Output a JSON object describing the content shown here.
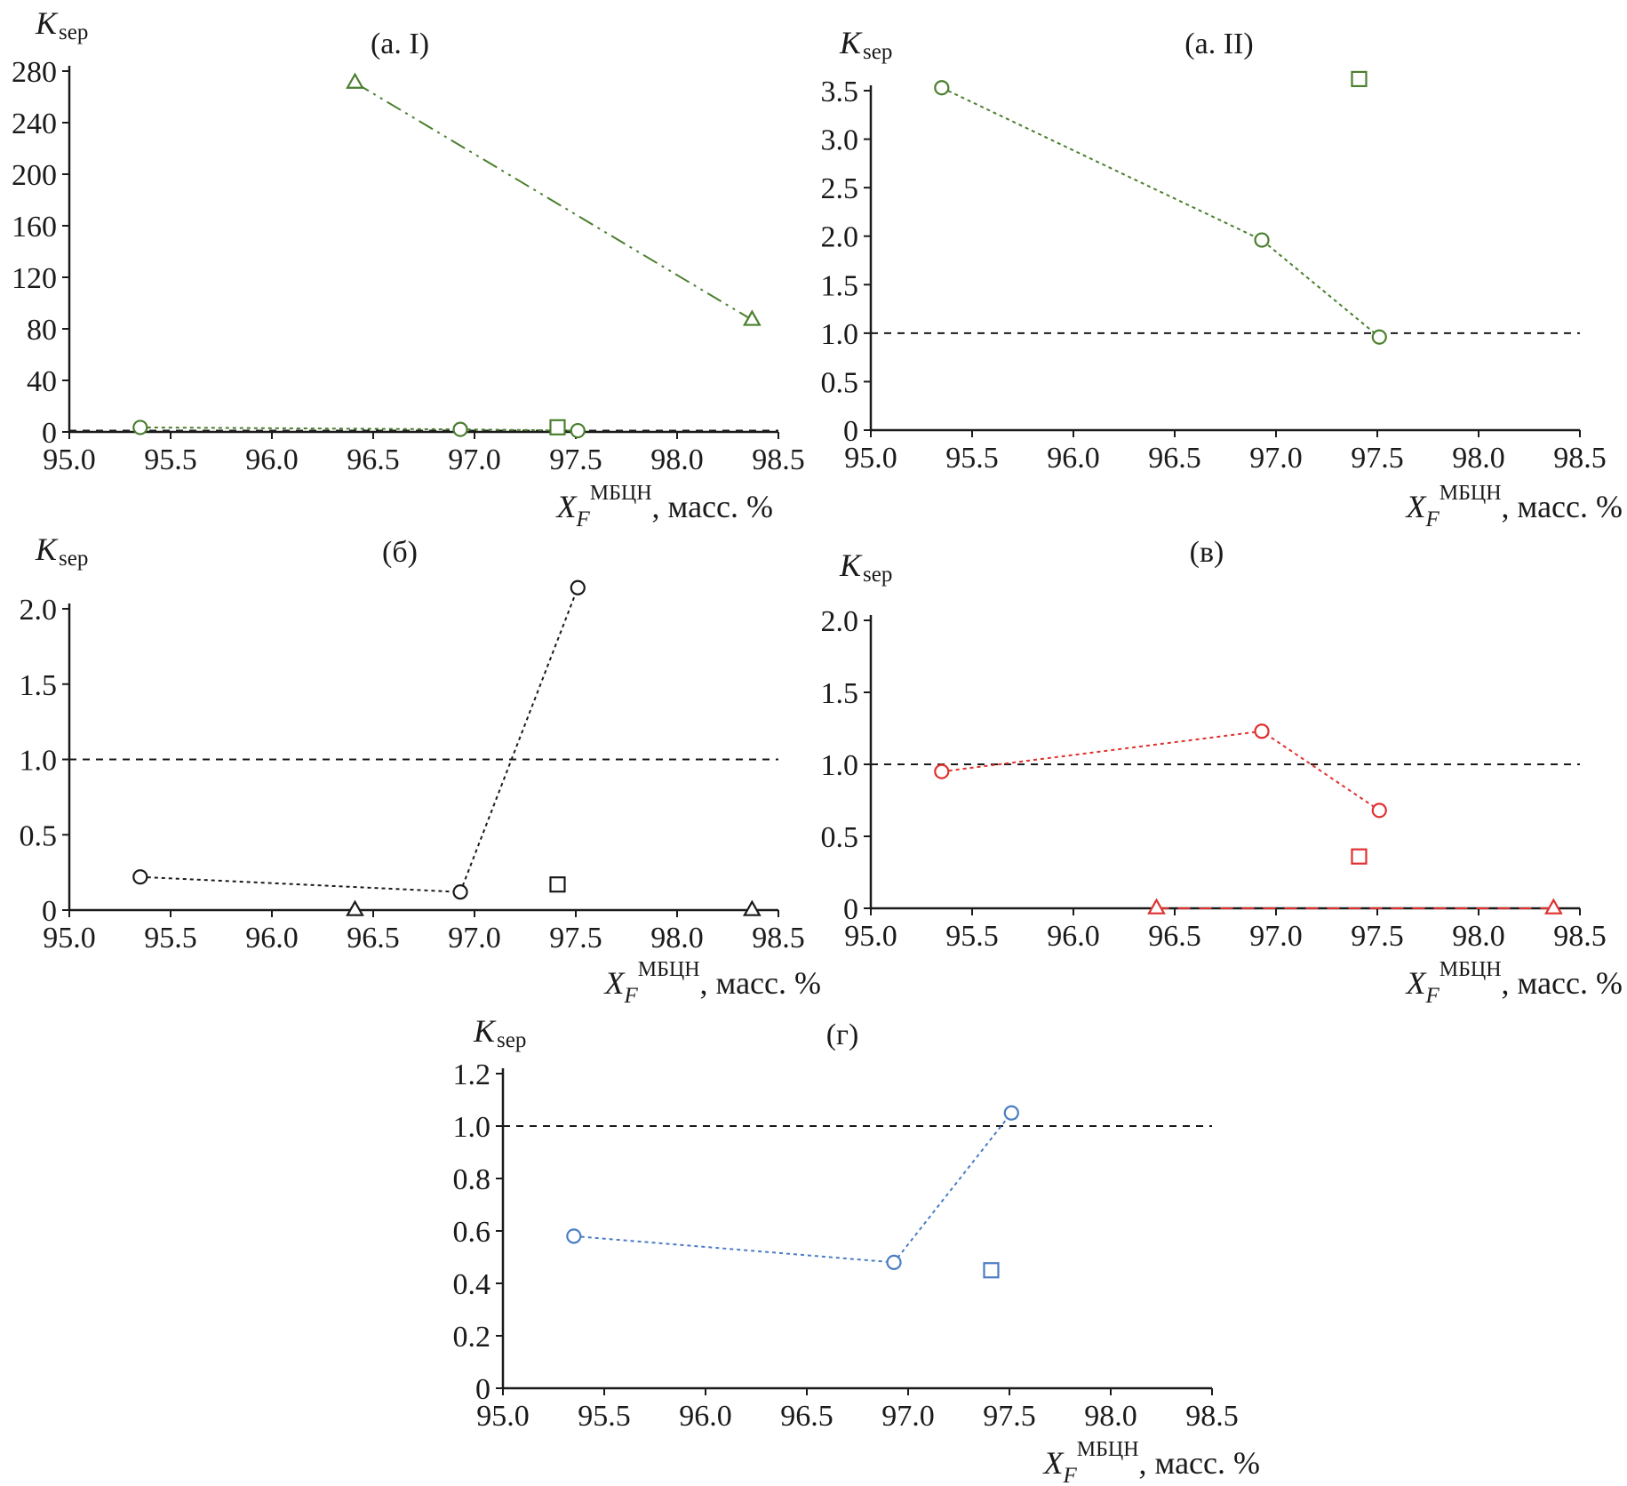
{
  "colors": {
    "green": "#4a7f2e",
    "black": "#1a1a1a",
    "red": "#e0312f",
    "blue": "#4a7dc4",
    "axis": "#1a1a1a"
  },
  "axis_text": {
    "y_main": "K",
    "y_sub": "sep",
    "x_var": "X",
    "x_sub": "F",
    "x_sup": "МБЦН",
    "x_unit": ", масс. %"
  },
  "chart_data": [
    {
      "id": "a-I",
      "label": "(a. I)",
      "type": "line",
      "color": "green",
      "xlim": [
        95.0,
        98.5
      ],
      "ylim": [
        0,
        280
      ],
      "xticks": [
        95.0,
        95.5,
        96.0,
        96.5,
        97.0,
        97.5,
        98.0,
        98.5
      ],
      "xtick_labels": [
        "95.0",
        "95.5",
        "96.0",
        "96.5",
        "97.0",
        "97.5",
        "98.0",
        "98.5"
      ],
      "yticks": [
        0,
        40,
        80,
        120,
        160,
        200,
        240,
        280
      ],
      "ytick_labels": [
        "0",
        "40",
        "80",
        "120",
        "160",
        "200",
        "240",
        "280"
      ],
      "reference_line": 1.0,
      "series": [
        {
          "marker": "circle",
          "line": "dotted",
          "x": [
            95.35,
            96.93,
            97.51
          ],
          "y": [
            3.5,
            2.0,
            1.0
          ]
        },
        {
          "marker": "triangle",
          "line": "dashdotdot",
          "x": [
            96.41,
            98.37
          ],
          "y": [
            271,
            87
          ]
        },
        {
          "marker": "square",
          "line": "none",
          "x": [
            97.41
          ],
          "y": [
            3.6
          ]
        }
      ]
    },
    {
      "id": "a-II",
      "label": "(a. II)",
      "type": "line",
      "color": "green",
      "xlim": [
        95.0,
        98.5
      ],
      "ylim": [
        0,
        3.5
      ],
      "xticks": [
        95.0,
        95.5,
        96.0,
        96.5,
        97.0,
        97.5,
        98.0,
        98.5
      ],
      "xtick_labels": [
        "95.0",
        "95.5",
        "96.0",
        "96.5",
        "97.0",
        "97.5",
        "98.0",
        "98.5"
      ],
      "yticks": [
        0,
        0.5,
        1.0,
        1.5,
        2.0,
        2.5,
        3.0,
        3.5
      ],
      "ytick_labels": [
        "0",
        "0.5",
        "1.0",
        "1.5",
        "2.0",
        "2.5",
        "3.0",
        "3.5"
      ],
      "reference_line": 1.0,
      "series": [
        {
          "marker": "circle",
          "line": "dotted",
          "x": [
            95.35,
            96.93,
            97.51
          ],
          "y": [
            3.53,
            1.96,
            0.96
          ]
        },
        {
          "marker": "square",
          "line": "none",
          "x": [
            97.41
          ],
          "y": [
            3.62
          ]
        }
      ]
    },
    {
      "id": "b",
      "label": "(б)",
      "type": "line",
      "color": "black",
      "xlim": [
        95.0,
        98.5
      ],
      "ylim": [
        0,
        2.0
      ],
      "xticks": [
        95.0,
        95.5,
        96.0,
        96.5,
        97.0,
        97.5,
        98.0,
        98.5
      ],
      "xtick_labels": [
        "95.0",
        "95.5",
        "96.0",
        "96.5",
        "97.0",
        "97.5",
        "98.0",
        "98.5"
      ],
      "yticks": [
        0,
        0.5,
        1.0,
        1.5,
        2.0
      ],
      "ytick_labels": [
        "0",
        "0.5",
        "1.0",
        "1.5",
        "2.0"
      ],
      "reference_line": 1.0,
      "series": [
        {
          "marker": "circle",
          "line": "dotted",
          "x": [
            95.35,
            96.93,
            97.51
          ],
          "y": [
            0.22,
            0.12,
            2.14
          ]
        },
        {
          "marker": "triangle",
          "line": "dashdotdot",
          "x": [
            96.41,
            98.37
          ],
          "y": [
            0.0,
            0.0
          ]
        },
        {
          "marker": "square",
          "line": "none",
          "x": [
            97.41
          ],
          "y": [
            0.17
          ]
        }
      ]
    },
    {
      "id": "v",
      "label": "(в)",
      "type": "line",
      "color": "red",
      "xlim": [
        95.0,
        98.5
      ],
      "ylim": [
        0,
        2.0
      ],
      "xticks": [
        95.0,
        95.5,
        96.0,
        96.5,
        97.0,
        97.5,
        98.0,
        98.5
      ],
      "xtick_labels": [
        "95.0",
        "95.5",
        "96.0",
        "96.5",
        "97.0",
        "97.5",
        "98.0",
        "98.5"
      ],
      "yticks": [
        0,
        0.5,
        1.0,
        1.5,
        2.0
      ],
      "ytick_labels": [
        "0",
        "0.5",
        "1.0",
        "1.5",
        "2.0"
      ],
      "reference_line": 1.0,
      "series": [
        {
          "marker": "circle",
          "line": "dotted",
          "x": [
            95.35,
            96.93,
            97.51
          ],
          "y": [
            0.95,
            1.23,
            0.68
          ]
        },
        {
          "marker": "triangle",
          "line": "dashed",
          "x": [
            96.41,
            98.37
          ],
          "y": [
            0.0,
            0.0
          ]
        },
        {
          "marker": "square",
          "line": "none",
          "x": [
            97.41
          ],
          "y": [
            0.36
          ]
        }
      ]
    },
    {
      "id": "g",
      "label": "(г)",
      "type": "line",
      "color": "blue",
      "xlim": [
        95.0,
        98.5
      ],
      "ylim": [
        0,
        1.2
      ],
      "xticks": [
        95.0,
        95.5,
        96.0,
        96.5,
        97.0,
        97.5,
        98.0,
        98.5
      ],
      "xtick_labels": [
        "95.0",
        "95.5",
        "96.0",
        "96.5",
        "97.0",
        "97.5",
        "98.0",
        "98.5"
      ],
      "yticks": [
        0,
        0.2,
        0.4,
        0.6,
        0.8,
        1.0,
        1.2
      ],
      "ytick_labels": [
        "0",
        "0.2",
        "0.4",
        "0.6",
        "0.8",
        "1.0",
        "1.2"
      ],
      "reference_line": 1.0,
      "series": [
        {
          "marker": "circle",
          "line": "dotted",
          "x": [
            95.35,
            96.93,
            97.51
          ],
          "y": [
            0.58,
            0.48,
            1.05
          ]
        },
        {
          "marker": "square",
          "line": "none",
          "x": [
            97.41
          ],
          "y": [
            0.45
          ]
        }
      ]
    }
  ]
}
